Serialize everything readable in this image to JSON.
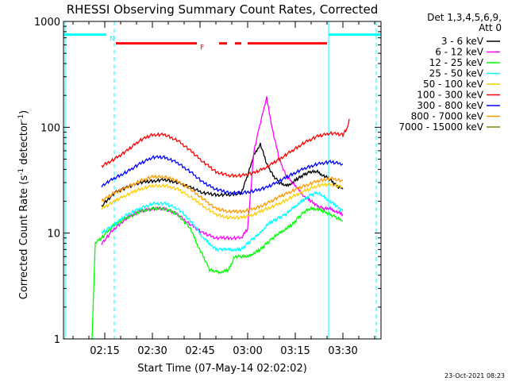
{
  "chart_data": {
    "type": "line",
    "title": "RHESSI Observing Summary Count Rates, Corrected",
    "xlabel": "Start Time (07-May-14 02:02:02)",
    "ylabel": "Corrected Count Rate (s",
    "ylabel_exp1": "-1",
    "ylabel_mid": " detector",
    "ylabel_exp2": "-1",
    "ylabel_end": ")",
    "yscale": "log",
    "ylim": [
      1,
      1000
    ],
    "xlim_minutes": [
      122.0,
      222.0
    ],
    "y_ticks": [
      {
        "value": 1,
        "label": "1"
      },
      {
        "value": 10,
        "label": "10"
      },
      {
        "value": 100,
        "label": "100"
      },
      {
        "value": 1000,
        "label": "1000"
      }
    ],
    "x_ticks": [
      {
        "value": 135,
        "label": "02:15"
      },
      {
        "value": 150,
        "label": "02:30"
      },
      {
        "value": 165,
        "label": "02:45"
      },
      {
        "value": 180,
        "label": "03:00"
      },
      {
        "value": 195,
        "label": "03:15"
      },
      {
        "value": 210,
        "label": "03:30"
      }
    ],
    "legend": {
      "header1": "Det 1,3,4,5,6,9,",
      "header2": "Att 0",
      "placement": "right"
    },
    "footer_date": "23-Oct-2021 08:23",
    "flags": [
      {
        "label": "N",
        "color": "#00ffff",
        "y": 750,
        "segments": [
          [
            122.0,
            135.5
          ],
          [
            205.5,
            222.0
          ]
        ]
      },
      {
        "label": "F",
        "color": "#ff0000",
        "y": 620,
        "segments": [
          [
            138.5,
            164.0
          ],
          [
            171.0,
            173.5
          ],
          [
            176.0,
            178.0
          ],
          [
            180.0,
            205.0
          ]
        ]
      }
    ],
    "vlines": [
      {
        "x": 122.5,
        "color": "#00ffff",
        "style": "solid"
      },
      {
        "x": 138.0,
        "color": "#00ffff",
        "style": "dashed"
      },
      {
        "x": 205.5,
        "color": "#00ffff",
        "style": "solid"
      },
      {
        "x": 220.5,
        "color": "#00ffff",
        "style": "dashed"
      }
    ],
    "series": [
      {
        "name": "3 - 6 keV",
        "color": "#000000",
        "x": [
          134,
          138,
          142,
          146,
          150,
          154,
          158,
          162,
          166,
          170,
          174,
          178,
          180,
          182,
          184,
          186,
          188,
          190,
          192,
          194,
          196,
          198,
          200,
          202,
          204,
          206,
          208,
          210
        ],
        "values": [
          18,
          24,
          27,
          30,
          31,
          32,
          30,
          27,
          24,
          23,
          23,
          24,
          35,
          55,
          70,
          45,
          35,
          30,
          28,
          30,
          33,
          36,
          38,
          38,
          35,
          32,
          28,
          26
        ]
      },
      {
        "name": "6 - 12 keV",
        "color": "#ff00ff",
        "x": [
          134,
          138,
          142,
          146,
          150,
          154,
          158,
          162,
          166,
          170,
          174,
          178,
          180,
          182,
          184,
          186,
          188,
          190,
          192,
          194,
          196,
          198,
          200,
          202,
          204,
          206,
          208,
          210
        ],
        "values": [
          8,
          11,
          14,
          16,
          17,
          17,
          15,
          12,
          10,
          9,
          9,
          9,
          11,
          60,
          110,
          190,
          90,
          50,
          35,
          30,
          26,
          22,
          20,
          18,
          17,
          17,
          16,
          15
        ]
      },
      {
        "name": "12 - 25 keV",
        "color": "#00ff00",
        "x": [
          131,
          132,
          134,
          138,
          142,
          146,
          150,
          154,
          158,
          162,
          164,
          166,
          168,
          170,
          172,
          174,
          176,
          178,
          180,
          182,
          184,
          186,
          188,
          190,
          192,
          194,
          196,
          198,
          200,
          202,
          204,
          206,
          208,
          210
        ],
        "values": [
          1,
          8,
          9,
          12,
          14,
          16,
          17,
          17,
          15,
          11,
          8,
          6,
          4.5,
          4.3,
          4.3,
          4.5,
          6,
          6,
          6,
          6.5,
          7,
          8,
          9,
          10,
          11,
          12,
          14,
          16,
          17,
          17,
          16,
          15,
          14,
          13
        ]
      },
      {
        "name": "25 - 50 keV",
        "color": "#00ffff",
        "x": [
          134,
          138,
          142,
          146,
          150,
          154,
          158,
          162,
          164,
          166,
          168,
          170,
          172,
          174,
          176,
          178,
          180,
          182,
          184,
          186,
          188,
          190,
          192,
          194,
          196,
          198,
          200,
          202,
          204,
          206,
          208,
          210
        ],
        "values": [
          10,
          12,
          15,
          17,
          19,
          19,
          17,
          13,
          11,
          9,
          8,
          7,
          7,
          7,
          7,
          7,
          8,
          9,
          10,
          12,
          13,
          14,
          15,
          17,
          19,
          21,
          23,
          24,
          22,
          20,
          18,
          16
        ]
      },
      {
        "name": "50 - 100 keV",
        "color": "#ffcc00",
        "x": [
          134,
          138,
          142,
          146,
          150,
          154,
          158,
          162,
          166,
          170,
          174,
          178,
          182,
          186,
          190,
          194,
          198,
          202,
          206,
          210
        ],
        "values": [
          17,
          20,
          23,
          26,
          28,
          28,
          26,
          22,
          18,
          15,
          14,
          14,
          15,
          17,
          19,
          22,
          25,
          28,
          29,
          27
        ]
      },
      {
        "name": "100 - 300 keV",
        "color": "#ff0000",
        "x": [
          134,
          138,
          142,
          146,
          150,
          154,
          158,
          162,
          166,
          170,
          174,
          178,
          182,
          186,
          190,
          194,
          198,
          202,
          206,
          210,
          211.5,
          212
        ],
        "values": [
          43,
          50,
          60,
          75,
          85,
          85,
          75,
          60,
          47,
          38,
          35,
          35,
          37,
          42,
          50,
          60,
          72,
          82,
          88,
          85,
          100,
          120
        ]
      },
      {
        "name": "300 - 800 keV",
        "color": "#0000ff",
        "x": [
          134,
          138,
          142,
          146,
          150,
          154,
          158,
          162,
          166,
          170,
          174,
          178,
          182,
          186,
          190,
          194,
          198,
          202,
          206,
          210
        ],
        "values": [
          28,
          33,
          38,
          45,
          52,
          52,
          46,
          38,
          30,
          26,
          24,
          24,
          25,
          27,
          31,
          36,
          41,
          45,
          47,
          45
        ]
      },
      {
        "name": "800 - 7000 keV",
        "color": "#ff9900",
        "x": [
          134,
          138,
          142,
          146,
          150,
          154,
          158,
          162,
          166,
          170,
          174,
          178,
          182,
          186,
          190,
          194,
          198,
          202,
          206,
          210
        ],
        "values": [
          20,
          24,
          27,
          31,
          34,
          34,
          31,
          26,
          21,
          17,
          16,
          16,
          17,
          19,
          22,
          25,
          28,
          31,
          33,
          31
        ]
      },
      {
        "name": "7000 - 15000 keV",
        "color": "#808000",
        "x": [],
        "values": []
      }
    ]
  }
}
